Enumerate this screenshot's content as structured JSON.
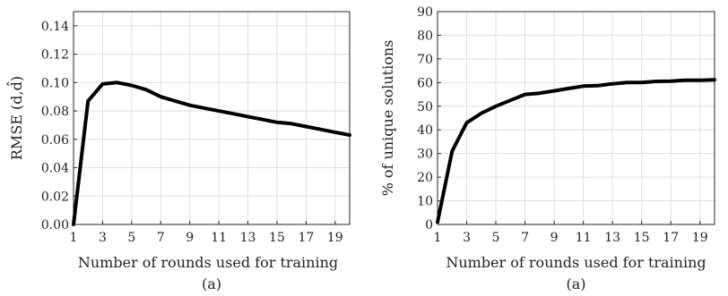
{
  "chart_data": [
    {
      "type": "line",
      "xlabel": "Number of rounds used for training",
      "ylabel": "RMSE (d,d̂)",
      "caption": "(a)",
      "xlim": [
        1,
        20
      ],
      "ylim": [
        0,
        0.15
      ],
      "xticks": [
        1,
        3,
        5,
        7,
        9,
        11,
        13,
        15,
        17,
        19
      ],
      "yticks": [
        0.0,
        0.02,
        0.04,
        0.06,
        0.08,
        0.1,
        0.12,
        0.14
      ],
      "ytick_labels": [
        "0.00",
        "0.02",
        "0.04",
        "0.06",
        "0.08",
        "0.10",
        "0.12",
        "0.14"
      ],
      "grid": true,
      "x": [
        1,
        2,
        3,
        4,
        5,
        6,
        7,
        8,
        9,
        10,
        11,
        12,
        13,
        14,
        15,
        16,
        17,
        18,
        19,
        20
      ],
      "y": [
        0.0,
        0.087,
        0.099,
        0.1,
        0.098,
        0.095,
        0.09,
        0.087,
        0.084,
        0.082,
        0.08,
        0.078,
        0.076,
        0.074,
        0.072,
        0.071,
        0.069,
        0.067,
        0.065,
        0.063
      ]
    },
    {
      "type": "line",
      "xlabel": "Number of rounds used for training",
      "ylabel": "% of unique solutions",
      "caption": "(a)",
      "xlim": [
        1,
        20
      ],
      "ylim": [
        0,
        90
      ],
      "xticks": [
        1,
        3,
        5,
        7,
        9,
        11,
        13,
        15,
        17,
        19
      ],
      "yticks": [
        0,
        10,
        20,
        30,
        40,
        50,
        60,
        70,
        80,
        90
      ],
      "ytick_labels": [
        "0",
        "10",
        "20",
        "30",
        "40",
        "50",
        "60",
        "70",
        "80",
        "90"
      ],
      "grid": true,
      "x": [
        1,
        2,
        3,
        4,
        5,
        6,
        7,
        8,
        9,
        10,
        11,
        12,
        13,
        14,
        15,
        16,
        17,
        18,
        19,
        20
      ],
      "y": [
        1,
        31,
        43,
        47,
        50,
        52.5,
        55,
        55.5,
        56.5,
        57.5,
        58.5,
        58.7,
        59.5,
        60,
        60,
        60.5,
        60.6,
        61,
        61,
        61.2
      ]
    }
  ]
}
